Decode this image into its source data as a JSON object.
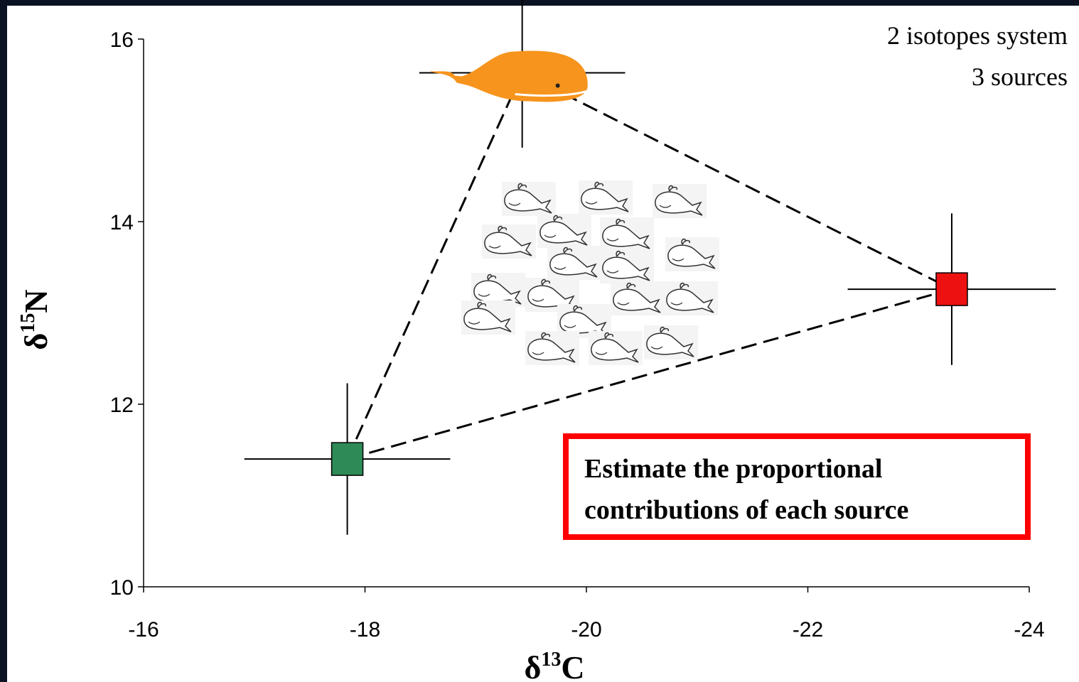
{
  "chart_data": {
    "type": "scatter",
    "xlabel": {
      "symbol": "δ",
      "sup": "13",
      "element": "C"
    },
    "ylabel": {
      "symbol": "δ",
      "sup": "15",
      "element": "N"
    },
    "xlim": [
      -16,
      -24
    ],
    "ylim": [
      10,
      16
    ],
    "xticks": [
      -16,
      -18,
      -20,
      -22,
      -24
    ],
    "yticks": [
      10,
      12,
      14,
      16
    ],
    "points": [
      {
        "x": -19.42,
        "y": 15.63,
        "xerr": 0.93,
        "yerr": 0.82,
        "color": "#f7941d",
        "marker": "whale"
      },
      {
        "x": -17.84,
        "y": 11.4,
        "xerr": 0.93,
        "yerr": 0.83,
        "color": "#2e8b57",
        "marker": "square"
      },
      {
        "x": -23.3,
        "y": 13.26,
        "xerr": 0.94,
        "yerr": 0.83,
        "color": "#ee1111",
        "marker": "square"
      }
    ],
    "annotations": [
      "2 isotopes system",
      "3 sources"
    ],
    "callout": [
      "Estimate the proportional",
      "contributions of each source"
    ],
    "callout_color": "#ff0000"
  }
}
